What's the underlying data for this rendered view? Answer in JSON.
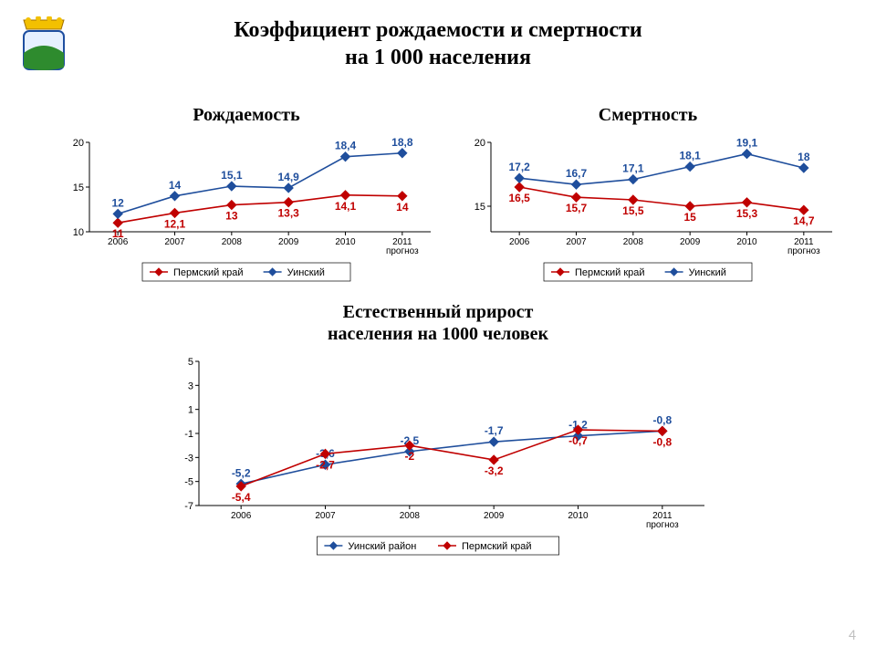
{
  "page_number": "4",
  "title_line1": "Коэффициент рождаемости и смертности",
  "title_line2": "на 1 000 населения",
  "logo": {
    "crown_color": "#f3c000",
    "shield_border": "#1e4ea0",
    "field_green": "#2e8b2e",
    "sky": "#e6f0ff"
  },
  "legend_series": {
    "perm": {
      "name": "Пермский край",
      "color": "#c00000",
      "marker": "diamond"
    },
    "uinsky": {
      "name": "Уинский",
      "color": "#1f4e9c",
      "marker": "diamond"
    },
    "uinsky_rayon": {
      "name": "Уинский район",
      "color": "#1f4e9c",
      "marker": "diamond"
    }
  },
  "charts": {
    "births": {
      "title": "Рождаемость",
      "type": "line",
      "categories": [
        "2006",
        "2007",
        "2008",
        "2009",
        "2010",
        "2011 прогноз"
      ],
      "ylim": [
        10,
        20
      ],
      "yticks": [
        10,
        15,
        20
      ],
      "series": [
        {
          "key": "perm",
          "label_pos": "below",
          "values": [
            11,
            12.1,
            13,
            13.3,
            14.1,
            14
          ],
          "display": [
            "11",
            "12,1",
            "13",
            "13,3",
            "14,1",
            "14"
          ]
        },
        {
          "key": "uinsky",
          "label_pos": "above",
          "values": [
            12,
            14,
            15.1,
            14.9,
            18.4,
            18.8
          ],
          "display": [
            "12",
            "14",
            "15,1",
            "14,9",
            "18,4",
            "18,8"
          ]
        }
      ],
      "axis_color": "#000000",
      "label_fontsize": 11,
      "value_fontsize": 12,
      "background": "#ffffff",
      "line_width": 1.6,
      "marker_size": 5
    },
    "deaths": {
      "title": "Смертность",
      "type": "line",
      "categories": [
        "2006",
        "2007",
        "2008",
        "2009",
        "2010",
        "2011 прогноз"
      ],
      "ylim": [
        13,
        20
      ],
      "yticks": [
        15,
        20
      ],
      "series": [
        {
          "key": "perm",
          "label_pos": "below",
          "values": [
            16.5,
            15.7,
            15.5,
            15,
            15.3,
            14.7
          ],
          "display": [
            "16,5",
            "15,7",
            "15,5",
            "15",
            "15,3",
            "14,7"
          ]
        },
        {
          "key": "uinsky",
          "label_pos": "above",
          "values": [
            17.2,
            16.7,
            17.1,
            18.1,
            19.1,
            18
          ],
          "display": [
            "17,2",
            "16,7",
            "17,1",
            "18,1",
            "19,1",
            "18"
          ]
        }
      ],
      "axis_color": "#000000",
      "label_fontsize": 11,
      "value_fontsize": 12,
      "background": "#ffffff",
      "line_width": 1.6,
      "marker_size": 5
    },
    "growth": {
      "title_line1": "Естественный прирост",
      "title_line2": "населения на 1000 человек",
      "type": "line",
      "categories": [
        "2006",
        "2007",
        "2008",
        "2009",
        "2010",
        "2011 прогноз"
      ],
      "ylim": [
        -7,
        5
      ],
      "yticks": [
        -7,
        -5,
        -3,
        -1,
        1,
        3,
        5
      ],
      "series": [
        {
          "key": "uinsky_rayon",
          "label_pos": "above",
          "values": [
            -5.2,
            -3.6,
            -2.5,
            -1.7,
            -1.2,
            -0.8
          ],
          "display": [
            "-5,2",
            "-3,6",
            "-2,5",
            "-1,7",
            "-1,2",
            "-0,8"
          ]
        },
        {
          "key": "perm",
          "label_pos": "below",
          "values": [
            -5.4,
            -2.7,
            -2,
            -3.2,
            -0.7,
            -0.8
          ],
          "display": [
            "-5,4",
            "-2,7",
            "-2",
            "-3,2",
            "-0,7",
            "-0,8"
          ]
        }
      ],
      "axis_color": "#000000",
      "label_fontsize": 11,
      "value_fontsize": 12,
      "background": "#ffffff",
      "line_width": 1.6,
      "marker_size": 5,
      "last_label_color": "#1f4e9c"
    }
  }
}
